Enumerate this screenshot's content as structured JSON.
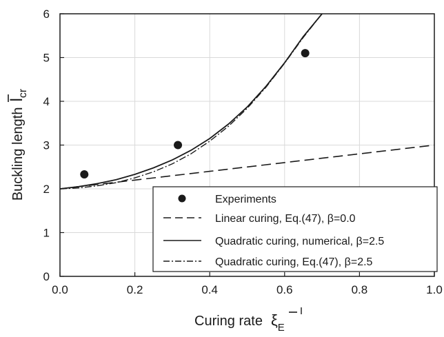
{
  "chart_data": {
    "type": "line",
    "xlim": [
      0,
      1
    ],
    "ylim": [
      0,
      6
    ],
    "x_ticks": [
      "0.0",
      "0.2",
      "0.4",
      "0.6",
      "0.8",
      "1.0"
    ],
    "y_ticks": [
      "0",
      "1",
      "2",
      "3",
      "4",
      "5",
      "6"
    ],
    "xlabel": "Curing rate",
    "xlabel_symbol": "ξ",
    "xlabel_subscript": "E",
    "ylabel": "Buckling length",
    "ylabel_symbol": "l",
    "ylabel_subscript": "cr",
    "grid": true,
    "legend_position": "bottom-right",
    "series": [
      {
        "name": "Experiments",
        "kind": "scatter",
        "points": [
          [
            0.065,
            2.33
          ],
          [
            0.315,
            3.0
          ],
          [
            0.655,
            5.1
          ]
        ]
      },
      {
        "name": "Linear curing, Eq.(47), β=0.0",
        "kind": "dashed",
        "points": [
          [
            0.0,
            2.0
          ],
          [
            0.2,
            2.2
          ],
          [
            0.4,
            2.4
          ],
          [
            0.6,
            2.6
          ],
          [
            0.8,
            2.8
          ],
          [
            1.0,
            3.0
          ]
        ]
      },
      {
        "name": "Quadratic curing, numerical, β=2.5",
        "kind": "solid",
        "points": [
          [
            0.0,
            2.0
          ],
          [
            0.05,
            2.05
          ],
          [
            0.1,
            2.12
          ],
          [
            0.15,
            2.21
          ],
          [
            0.2,
            2.33
          ],
          [
            0.25,
            2.48
          ],
          [
            0.3,
            2.66
          ],
          [
            0.35,
            2.88
          ],
          [
            0.4,
            3.15
          ],
          [
            0.45,
            3.48
          ],
          [
            0.5,
            3.87
          ],
          [
            0.55,
            4.34
          ],
          [
            0.6,
            4.88
          ],
          [
            0.65,
            5.48
          ],
          [
            0.7,
            6.0
          ]
        ]
      },
      {
        "name": "Quadratic curing, Eq.(47), β=2.5",
        "kind": "dashdot",
        "points": [
          [
            0.0,
            2.0
          ],
          [
            0.05,
            2.02
          ],
          [
            0.1,
            2.07
          ],
          [
            0.15,
            2.14
          ],
          [
            0.2,
            2.25
          ],
          [
            0.25,
            2.39
          ],
          [
            0.3,
            2.57
          ],
          [
            0.35,
            2.8
          ],
          [
            0.4,
            3.09
          ],
          [
            0.45,
            3.43
          ],
          [
            0.5,
            3.84
          ],
          [
            0.55,
            4.32
          ],
          [
            0.6,
            4.87
          ],
          [
            0.65,
            5.46
          ],
          [
            0.7,
            6.0
          ]
        ]
      }
    ]
  }
}
